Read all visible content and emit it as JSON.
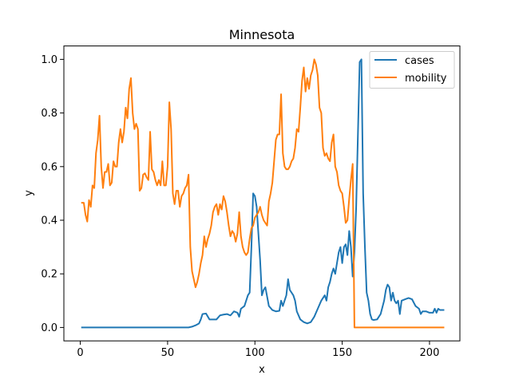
{
  "chart_data": {
    "type": "line",
    "title": "Minnesota",
    "xlabel": "x",
    "ylabel": "y",
    "xlim": [
      -9.4,
      217.4
    ],
    "ylim": [
      -0.05,
      1.05
    ],
    "xticks": [
      0,
      50,
      100,
      150,
      200
    ],
    "yticks": [
      0.0,
      0.2,
      0.4,
      0.6,
      0.8,
      1.0
    ],
    "xtick_labels": [
      "0",
      "50",
      "100",
      "150",
      "200"
    ],
    "ytick_labels": [
      "0.0",
      "0.2",
      "0.4",
      "0.6",
      "0.8",
      "1.0"
    ],
    "grid": false,
    "legend_position": "upper right",
    "series": [
      {
        "name": "cases",
        "color": "#1f77b4",
        "points": [
          [
            1,
            0
          ],
          [
            10,
            0
          ],
          [
            20,
            0
          ],
          [
            30,
            0
          ],
          [
            40,
            0
          ],
          [
            50,
            0
          ],
          [
            60,
            0
          ],
          [
            62,
            0
          ],
          [
            64,
            0.003
          ],
          [
            66,
            0.008
          ],
          [
            68,
            0.015
          ],
          [
            69,
            0.03
          ],
          [
            70,
            0.05
          ],
          [
            72,
            0.052
          ],
          [
            74,
            0.03
          ],
          [
            76,
            0.03
          ],
          [
            78,
            0.03
          ],
          [
            80,
            0.045
          ],
          [
            82,
            0.048
          ],
          [
            84,
            0.05
          ],
          [
            86,
            0.045
          ],
          [
            88,
            0.06
          ],
          [
            90,
            0.055
          ],
          [
            91,
            0.04
          ],
          [
            92,
            0.07
          ],
          [
            94,
            0.08
          ],
          [
            96,
            0.12
          ],
          [
            97,
            0.13
          ],
          [
            98,
            0.3
          ],
          [
            99,
            0.5
          ],
          [
            100,
            0.49
          ],
          [
            101,
            0.45
          ],
          [
            102,
            0.35
          ],
          [
            103,
            0.25
          ],
          [
            104,
            0.12
          ],
          [
            105,
            0.14
          ],
          [
            106,
            0.15
          ],
          [
            108,
            0.08
          ],
          [
            110,
            0.065
          ],
          [
            112,
            0.06
          ],
          [
            114,
            0.062
          ],
          [
            115,
            0.1
          ],
          [
            116,
            0.08
          ],
          [
            118,
            0.12
          ],
          [
            119,
            0.18
          ],
          [
            120,
            0.14
          ],
          [
            122,
            0.12
          ],
          [
            123,
            0.1
          ],
          [
            124,
            0.06
          ],
          [
            126,
            0.03
          ],
          [
            128,
            0.02
          ],
          [
            130,
            0.015
          ],
          [
            132,
            0.02
          ],
          [
            134,
            0.04
          ],
          [
            136,
            0.07
          ],
          [
            138,
            0.1
          ],
          [
            140,
            0.12
          ],
          [
            141,
            0.1
          ],
          [
            142,
            0.15
          ],
          [
            143,
            0.17
          ],
          [
            144,
            0.2
          ],
          [
            145,
            0.22
          ],
          [
            146,
            0.2
          ],
          [
            147,
            0.24
          ],
          [
            148,
            0.28
          ],
          [
            149,
            0.3
          ],
          [
            150,
            0.24
          ],
          [
            151,
            0.3
          ],
          [
            152,
            0.31
          ],
          [
            153,
            0.27
          ],
          [
            154,
            0.36
          ],
          [
            155,
            0.3
          ],
          [
            156,
            0.19
          ],
          [
            157,
            0.28
          ],
          [
            158,
            0.45
          ],
          [
            159,
            0.72
          ],
          [
            160,
            0.99
          ],
          [
            161,
            1.0
          ],
          [
            162,
            0.5
          ],
          [
            163,
            0.3
          ],
          [
            164,
            0.13
          ],
          [
            165,
            0.1
          ],
          [
            166,
            0.05
          ],
          [
            167,
            0.03
          ],
          [
            168,
            0.028
          ],
          [
            170,
            0.03
          ],
          [
            172,
            0.05
          ],
          [
            174,
            0.1
          ],
          [
            175,
            0.14
          ],
          [
            176,
            0.16
          ],
          [
            177,
            0.15
          ],
          [
            178,
            0.1
          ],
          [
            179,
            0.13
          ],
          [
            180,
            0.1
          ],
          [
            181,
            0.09
          ],
          [
            182,
            0.1
          ],
          [
            183,
            0.05
          ],
          [
            184,
            0.1
          ],
          [
            186,
            0.105
          ],
          [
            188,
            0.11
          ],
          [
            190,
            0.105
          ],
          [
            192,
            0.08
          ],
          [
            194,
            0.07
          ],
          [
            195,
            0.05
          ],
          [
            196,
            0.06
          ],
          [
            198,
            0.06
          ],
          [
            200,
            0.055
          ],
          [
            202,
            0.055
          ],
          [
            203,
            0.07
          ],
          [
            204,
            0.055
          ],
          [
            205,
            0.07
          ],
          [
            206,
            0.065
          ],
          [
            208,
            0.065
          ]
        ]
      },
      {
        "name": "mobility",
        "color": "#ff7f0e",
        "points": [
          [
            1,
            0.465
          ],
          [
            2,
            0.465
          ],
          [
            3,
            0.42
          ],
          [
            4,
            0.395
          ],
          [
            5,
            0.475
          ],
          [
            6,
            0.45
          ],
          [
            7,
            0.53
          ],
          [
            8,
            0.52
          ],
          [
            9,
            0.65
          ],
          [
            10,
            0.7
          ],
          [
            11,
            0.79
          ],
          [
            12,
            0.6
          ],
          [
            13,
            0.52
          ],
          [
            14,
            0.58
          ],
          [
            15,
            0.58
          ],
          [
            16,
            0.61
          ],
          [
            17,
            0.53
          ],
          [
            18,
            0.54
          ],
          [
            19,
            0.62
          ],
          [
            20,
            0.6
          ],
          [
            21,
            0.6
          ],
          [
            22,
            0.69
          ],
          [
            23,
            0.74
          ],
          [
            24,
            0.69
          ],
          [
            25,
            0.73
          ],
          [
            26,
            0.82
          ],
          [
            27,
            0.78
          ],
          [
            28,
            0.89
          ],
          [
            29,
            0.93
          ],
          [
            30,
            0.8
          ],
          [
            31,
            0.74
          ],
          [
            32,
            0.76
          ],
          [
            33,
            0.74
          ],
          [
            34,
            0.51
          ],
          [
            35,
            0.52
          ],
          [
            36,
            0.57
          ],
          [
            37,
            0.575
          ],
          [
            38,
            0.56
          ],
          [
            39,
            0.55
          ],
          [
            40,
            0.73
          ],
          [
            41,
            0.59
          ],
          [
            42,
            0.58
          ],
          [
            43,
            0.55
          ],
          [
            44,
            0.53
          ],
          [
            45,
            0.55
          ],
          [
            46,
            0.53
          ],
          [
            47,
            0.62
          ],
          [
            48,
            0.53
          ],
          [
            49,
            0.53
          ],
          [
            50,
            0.6
          ],
          [
            51,
            0.84
          ],
          [
            52,
            0.74
          ],
          [
            53,
            0.5
          ],
          [
            54,
            0.46
          ],
          [
            55,
            0.51
          ],
          [
            56,
            0.51
          ],
          [
            57,
            0.45
          ],
          [
            58,
            0.49
          ],
          [
            59,
            0.5
          ],
          [
            60,
            0.52
          ],
          [
            61,
            0.53
          ],
          [
            62,
            0.57
          ],
          [
            63,
            0.3
          ],
          [
            64,
            0.21
          ],
          [
            65,
            0.18
          ],
          [
            66,
            0.15
          ],
          [
            67,
            0.17
          ],
          [
            68,
            0.2
          ],
          [
            69,
            0.24
          ],
          [
            70,
            0.27
          ],
          [
            71,
            0.34
          ],
          [
            72,
            0.3
          ],
          [
            73,
            0.33
          ],
          [
            74,
            0.35
          ],
          [
            75,
            0.38
          ],
          [
            76,
            0.43
          ],
          [
            77,
            0.45
          ],
          [
            78,
            0.46
          ],
          [
            79,
            0.42
          ],
          [
            80,
            0.46
          ],
          [
            81,
            0.44
          ],
          [
            82,
            0.49
          ],
          [
            83,
            0.47
          ],
          [
            84,
            0.43
          ],
          [
            85,
            0.38
          ],
          [
            86,
            0.34
          ],
          [
            87,
            0.36
          ],
          [
            88,
            0.35
          ],
          [
            89,
            0.32
          ],
          [
            90,
            0.35
          ],
          [
            91,
            0.43
          ],
          [
            92,
            0.34
          ],
          [
            93,
            0.3
          ],
          [
            94,
            0.28
          ],
          [
            95,
            0.27
          ],
          [
            96,
            0.28
          ],
          [
            97,
            0.33
          ],
          [
            98,
            0.37
          ],
          [
            99,
            0.38
          ],
          [
            100,
            0.41
          ],
          [
            101,
            0.42
          ],
          [
            102,
            0.43
          ],
          [
            103,
            0.45
          ],
          [
            104,
            0.42
          ],
          [
            105,
            0.4
          ],
          [
            106,
            0.39
          ],
          [
            107,
            0.38
          ],
          [
            108,
            0.47
          ],
          [
            109,
            0.5
          ],
          [
            110,
            0.54
          ],
          [
            111,
            0.62
          ],
          [
            112,
            0.7
          ],
          [
            113,
            0.72
          ],
          [
            114,
            0.72
          ],
          [
            115,
            0.87
          ],
          [
            116,
            0.65
          ],
          [
            117,
            0.6
          ],
          [
            118,
            0.59
          ],
          [
            119,
            0.59
          ],
          [
            120,
            0.6
          ],
          [
            121,
            0.62
          ],
          [
            122,
            0.63
          ],
          [
            123,
            0.67
          ],
          [
            124,
            0.74
          ],
          [
            125,
            0.73
          ],
          [
            126,
            0.82
          ],
          [
            127,
            0.92
          ],
          [
            128,
            0.97
          ],
          [
            129,
            0.88
          ],
          [
            130,
            0.93
          ],
          [
            131,
            0.89
          ],
          [
            132,
            0.94
          ],
          [
            133,
            0.96
          ],
          [
            134,
            1.0
          ],
          [
            135,
            0.98
          ],
          [
            136,
            0.94
          ],
          [
            137,
            0.82
          ],
          [
            138,
            0.8
          ],
          [
            139,
            0.67
          ],
          [
            140,
            0.64
          ],
          [
            141,
            0.65
          ],
          [
            142,
            0.63
          ],
          [
            143,
            0.62
          ],
          [
            144,
            0.69
          ],
          [
            145,
            0.72
          ],
          [
            146,
            0.6
          ],
          [
            147,
            0.58
          ],
          [
            148,
            0.53
          ],
          [
            149,
            0.51
          ],
          [
            150,
            0.5
          ],
          [
            151,
            0.45
          ],
          [
            152,
            0.39
          ],
          [
            153,
            0.4
          ],
          [
            154,
            0.48
          ],
          [
            155,
            0.55
          ],
          [
            156,
            0.61
          ],
          [
            157,
            0.0
          ],
          [
            160,
            0.0
          ],
          [
            170,
            0.0
          ],
          [
            180,
            0.0
          ],
          [
            190,
            0.0
          ],
          [
            200,
            0.0
          ],
          [
            208,
            0.0
          ]
        ]
      }
    ]
  }
}
